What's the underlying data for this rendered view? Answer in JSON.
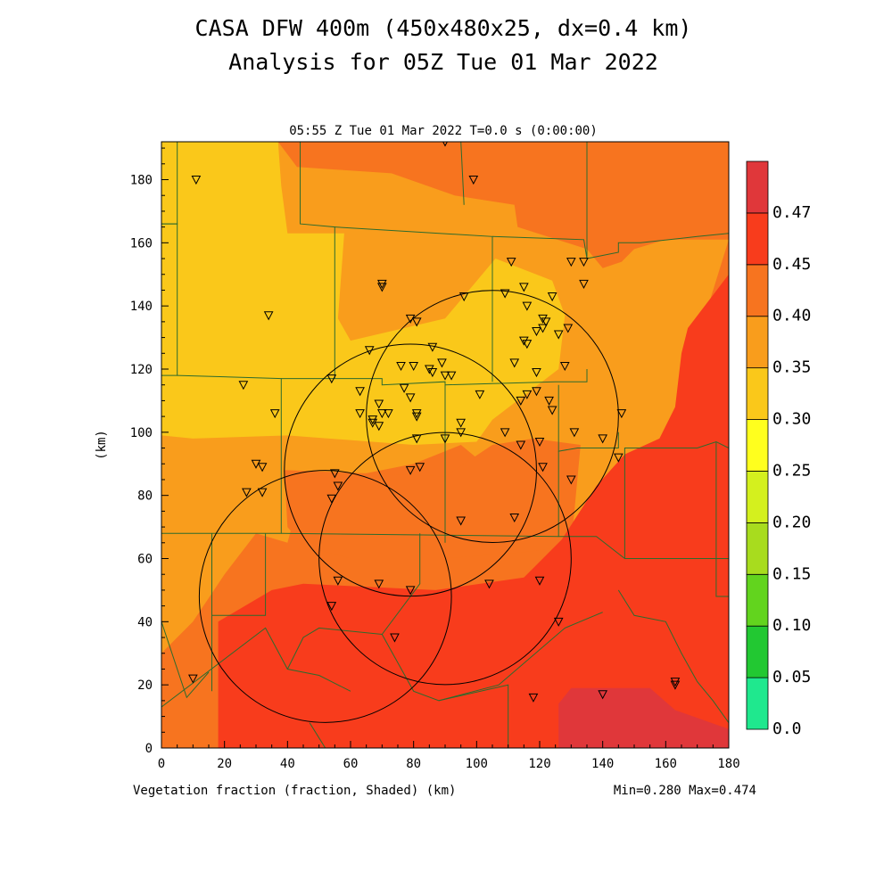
{
  "figure": {
    "title_line1": "CASA DFW 400m (450x480x25, dx=0.4 km)",
    "title_line2": "Analysis for 05Z Tue 01 Mar 2022",
    "subtitle": "05:55 Z Tue 01 Mar 2022    T=0.0 s (0:00:00)",
    "footer_left": "Vegetation fraction (fraction, Shaded)  (km)",
    "footer_right": "Min=0.280 Max=0.474",
    "ylabel": "(km)"
  },
  "chart_data": {
    "type": "heatmap",
    "variable": "Vegetation fraction",
    "units": "fraction",
    "xlim": [
      0,
      180
    ],
    "ylim": [
      0,
      192
    ],
    "x_ticks": [
      "0",
      "20",
      "40",
      "60",
      "80",
      "100",
      "120",
      "140",
      "160",
      "180"
    ],
    "y_ticks": [
      "0",
      "20",
      "40",
      "60",
      "80",
      "100",
      "120",
      "140",
      "160",
      "180"
    ],
    "min": 0.28,
    "max": 0.474,
    "colorbar": {
      "labels": [
        "0.0",
        "0.05",
        "0.10",
        "0.15",
        "0.20",
        "0.25",
        "0.30",
        "0.35",
        "0.40",
        "0.45",
        "0.47"
      ],
      "colors": [
        "#1fe88e",
        "#22c832",
        "#62d41e",
        "#a8dc1e",
        "#d4f01e",
        "#ffff1e",
        "#fac81a",
        "#f99d1c",
        "#f7741f",
        "#f83c1c",
        "#e0373a"
      ]
    },
    "regions": [
      {
        "level": "0.30-0.35",
        "color": "#f99d1c",
        "points": [
          [
            0,
            192
          ],
          [
            180,
            192
          ],
          [
            180,
            0
          ],
          [
            0,
            0
          ]
        ]
      },
      {
        "level": "0.25-0.30",
        "color": "#fac81a",
        "points": [
          [
            0,
            192
          ],
          [
            37,
            192
          ],
          [
            38,
            178
          ],
          [
            40,
            163
          ],
          [
            58,
            163
          ],
          [
            56,
            136
          ],
          [
            60,
            129
          ],
          [
            90,
            136
          ],
          [
            106,
            155
          ],
          [
            124,
            148
          ],
          [
            128,
            137
          ],
          [
            126,
            120
          ],
          [
            105,
            104
          ],
          [
            100,
            97
          ],
          [
            80,
            96
          ],
          [
            40,
            99
          ],
          [
            10,
            98
          ],
          [
            0,
            99
          ]
        ]
      },
      {
        "level": "0.35-0.40",
        "color": "#f7741f",
        "points": [
          [
            37,
            192
          ],
          [
            180,
            192
          ],
          [
            180,
            161
          ],
          [
            160,
            161
          ],
          [
            150,
            158
          ],
          [
            146,
            154
          ],
          [
            140,
            152
          ],
          [
            135,
            158
          ],
          [
            113,
            165
          ],
          [
            112,
            172
          ],
          [
            93,
            175
          ],
          [
            73,
            182
          ],
          [
            43,
            184
          ]
        ]
      },
      {
        "level": "0.35-0.40",
        "color": "#f7741f",
        "points": [
          [
            180,
            161
          ],
          [
            180,
            0
          ],
          [
            130,
            0
          ],
          [
            128,
            65
          ],
          [
            112,
            82
          ],
          [
            95,
            96
          ],
          [
            80,
            90
          ],
          [
            60,
            86
          ],
          [
            44,
            80
          ],
          [
            40,
            65
          ],
          [
            30,
            68
          ],
          [
            20,
            55
          ],
          [
            10,
            40
          ],
          [
            0,
            30
          ],
          [
            0,
            0
          ],
          [
            60,
            0
          ],
          [
            60,
            55
          ],
          [
            45,
            62
          ],
          [
            29,
            63
          ],
          [
            29,
            0
          ],
          [
            0,
            0
          ],
          [
            0,
            0
          ],
          [
            130,
            0
          ]
        ]
      },
      {
        "level": "0.35-0.40",
        "color": "#f7741f",
        "points": [
          [
            39,
            88
          ],
          [
            90,
            86
          ],
          [
            105,
            96
          ],
          [
            118,
            98
          ],
          [
            133,
            96
          ],
          [
            130,
            64
          ],
          [
            115,
            62
          ],
          [
            90,
            60
          ],
          [
            60,
            60
          ],
          [
            45,
            64
          ],
          [
            40,
            70
          ]
        ]
      },
      {
        "level": "0.40-0.45",
        "color": "#f83c1c",
        "points": [
          [
            180,
            150
          ],
          [
            180,
            0
          ],
          [
            18,
            0
          ],
          [
            18,
            40
          ],
          [
            35,
            50
          ],
          [
            45,
            52
          ],
          [
            87,
            50
          ],
          [
            115,
            54
          ],
          [
            127,
            66
          ],
          [
            138,
            83
          ],
          [
            147,
            93
          ],
          [
            158,
            98
          ],
          [
            163,
            108
          ],
          [
            165,
            125
          ],
          [
            167,
            133
          ]
        ]
      },
      {
        "level": "0.45-0.47",
        "color": "#e0373a",
        "points": [
          [
            126,
            0
          ],
          [
            180,
            0
          ],
          [
            180,
            6
          ],
          [
            163,
            12
          ],
          [
            155,
            19
          ],
          [
            130,
            19
          ],
          [
            126,
            14
          ]
        ]
      }
    ],
    "boundaries": [
      [
        [
          5,
          192
        ],
        [
          5,
          166
        ],
        [
          0,
          166
        ]
      ],
      [
        [
          0,
          166
        ],
        [
          5,
          166
        ],
        [
          5,
          118
        ],
        [
          0,
          118
        ]
      ],
      [
        [
          5,
          118
        ],
        [
          38,
          117
        ],
        [
          38,
          68
        ],
        [
          0,
          68
        ]
      ],
      [
        [
          38,
          117
        ],
        [
          70,
          117
        ],
        [
          70,
          115
        ],
        [
          90,
          116
        ],
        [
          90,
          115
        ],
        [
          125,
          116
        ],
        [
          135,
          116
        ],
        [
          135,
          120
        ]
      ],
      [
        [
          44,
          192
        ],
        [
          44,
          166
        ],
        [
          55,
          165
        ],
        [
          55,
          117
        ]
      ],
      [
        [
          55,
          165
        ],
        [
          105,
          162
        ],
        [
          105,
          116
        ]
      ],
      [
        [
          105,
          162
        ],
        [
          134,
          161
        ],
        [
          135,
          155
        ],
        [
          145,
          157
        ],
        [
          145,
          160
        ],
        [
          152,
          160
        ],
        [
          170,
          162
        ],
        [
          180,
          163
        ]
      ],
      [
        [
          95,
          192
        ],
        [
          96,
          172
        ]
      ],
      [
        [
          135,
          192
        ],
        [
          135,
          155
        ]
      ],
      [
        [
          90,
          116
        ],
        [
          90,
          65
        ]
      ],
      [
        [
          126,
          115
        ],
        [
          126,
          94
        ],
        [
          132,
          95
        ],
        [
          145,
          95
        ],
        [
          145,
          100
        ]
      ],
      [
        [
          126,
          94
        ],
        [
          126,
          67
        ],
        [
          138,
          67
        ],
        [
          147,
          60
        ],
        [
          180,
          60
        ]
      ],
      [
        [
          38,
          68
        ],
        [
          126,
          67
        ]
      ],
      [
        [
          16,
          68
        ],
        [
          16,
          18
        ]
      ],
      [
        [
          16,
          42
        ],
        [
          33,
          42
        ],
        [
          33,
          68
        ]
      ],
      [
        [
          0,
          68
        ],
        [
          0,
          40
        ],
        [
          8,
          16
        ],
        [
          15,
          24
        ]
      ],
      [
        [
          0,
          13
        ],
        [
          33,
          38
        ],
        [
          40,
          25
        ],
        [
          50,
          23
        ],
        [
          60,
          18
        ]
      ],
      [
        [
          40,
          25
        ],
        [
          45,
          35
        ],
        [
          50,
          38
        ],
        [
          70,
          36
        ],
        [
          82,
          52
        ],
        [
          82,
          68
        ]
      ],
      [
        [
          70,
          36
        ],
        [
          80,
          18
        ],
        [
          88,
          15
        ],
        [
          107,
          20
        ],
        [
          128,
          38
        ],
        [
          140,
          43
        ]
      ],
      [
        [
          88,
          15
        ],
        [
          110,
          20
        ],
        [
          110,
          0
        ]
      ],
      [
        [
          47,
          8
        ],
        [
          52,
          0
        ]
      ],
      [
        [
          0,
          0
        ],
        [
          0,
          192
        ]
      ],
      [
        [
          147,
          60
        ],
        [
          147,
          95
        ],
        [
          160,
          95
        ],
        [
          170,
          95
        ],
        [
          176,
          97
        ],
        [
          180,
          95
        ]
      ],
      [
        [
          176,
          97
        ],
        [
          176,
          48
        ],
        [
          180,
          48
        ]
      ],
      [
        [
          170,
          0
        ],
        [
          180,
          0
        ]
      ],
      [
        [
          145,
          50
        ],
        [
          150,
          42
        ],
        [
          160,
          40
        ],
        [
          165,
          30
        ],
        [
          170,
          21
        ],
        [
          175,
          15
        ],
        [
          180,
          8
        ]
      ]
    ],
    "radar_rings": [
      {
        "cx": 105,
        "cy": 105,
        "r": 40
      },
      {
        "cx": 79,
        "cy": 88,
        "r": 40
      },
      {
        "cx": 52,
        "cy": 48,
        "r": 40
      },
      {
        "cx": 90,
        "cy": 60,
        "r": 40
      }
    ],
    "stations": [
      [
        11,
        180
      ],
      [
        90,
        192
      ],
      [
        99,
        180
      ],
      [
        34,
        137
      ],
      [
        70,
        147
      ],
      [
        70,
        146
      ],
      [
        79,
        136
      ],
      [
        81,
        135
      ],
      [
        96,
        143
      ],
      [
        109,
        144
      ],
      [
        111,
        154
      ],
      [
        115,
        146
      ],
      [
        116,
        140
      ],
      [
        121,
        136
      ],
      [
        122,
        135
      ],
      [
        124,
        143
      ],
      [
        119,
        132
      ],
      [
        121,
        133
      ],
      [
        126,
        131
      ],
      [
        130,
        154
      ],
      [
        134,
        154
      ],
      [
        134,
        147
      ],
      [
        129,
        133
      ],
      [
        115,
        129
      ],
      [
        116,
        128
      ],
      [
        112,
        122
      ],
      [
        119,
        119
      ],
      [
        128,
        121
      ],
      [
        66,
        126
      ],
      [
        76,
        121
      ],
      [
        80,
        121
      ],
      [
        86,
        127
      ],
      [
        85,
        120
      ],
      [
        86,
        119
      ],
      [
        89,
        122
      ],
      [
        90,
        118
      ],
      [
        54,
        117
      ],
      [
        26,
        115
      ],
      [
        36,
        106
      ],
      [
        63,
        113
      ],
      [
        63,
        106
      ],
      [
        67,
        104
      ],
      [
        67,
        103
      ],
      [
        69,
        109
      ],
      [
        70,
        106
      ],
      [
        72,
        106
      ],
      [
        69,
        102
      ],
      [
        77,
        114
      ],
      [
        81,
        106
      ],
      [
        81,
        105
      ],
      [
        79,
        111
      ],
      [
        92,
        118
      ],
      [
        101,
        112
      ],
      [
        114,
        110
      ],
      [
        116,
        112
      ],
      [
        119,
        113
      ],
      [
        123,
        110
      ],
      [
        124,
        107
      ],
      [
        95,
        103
      ],
      [
        95,
        100
      ],
      [
        90,
        98
      ],
      [
        81,
        98
      ],
      [
        109,
        100
      ],
      [
        114,
        96
      ],
      [
        120,
        97
      ],
      [
        131,
        100
      ],
      [
        140,
        98
      ],
      [
        145,
        92
      ],
      [
        146,
        106
      ],
      [
        130,
        85
      ],
      [
        121,
        89
      ],
      [
        30,
        90
      ],
      [
        32,
        89
      ],
      [
        27,
        81
      ],
      [
        32,
        81
      ],
      [
        55,
        87
      ],
      [
        56,
        83
      ],
      [
        54,
        79
      ],
      [
        79,
        88
      ],
      [
        82,
        89
      ],
      [
        95,
        72
      ],
      [
        112,
        73
      ],
      [
        56,
        53
      ],
      [
        69,
        52
      ],
      [
        79,
        50
      ],
      [
        104,
        52
      ],
      [
        120,
        53
      ],
      [
        126,
        40
      ],
      [
        54,
        45
      ],
      [
        74,
        35
      ],
      [
        10,
        22
      ],
      [
        118,
        16
      ],
      [
        140,
        17
      ],
      [
        163,
        21
      ],
      [
        163,
        20
      ]
    ]
  }
}
